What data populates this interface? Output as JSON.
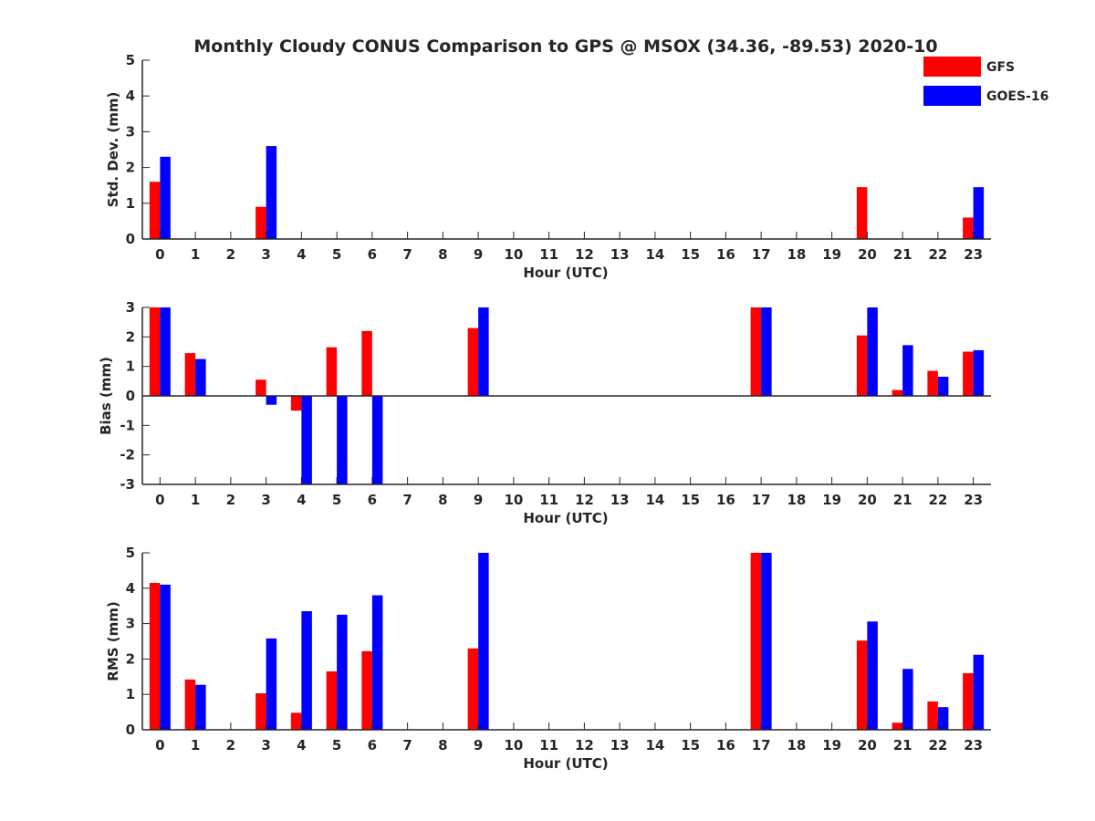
{
  "title": "Monthly Cloudy CONUS Comparison to GPS @ MSOX (34.36, -89.53) 2020-10",
  "legend": {
    "placement": "top-right",
    "entries": [
      {
        "name": "GFS",
        "color": "#ff0000"
      },
      {
        "name": "GOES-16",
        "color": "#0000ff"
      }
    ]
  },
  "chart_data": [
    {
      "type": "bar",
      "xlabel": "Hour (UTC)",
      "ylabel": "Std. Dev. (mm)",
      "ylim": [
        0,
        5
      ],
      "yticks": [
        "0",
        "1",
        "2",
        "3",
        "4",
        "5"
      ],
      "categories": [
        "0",
        "1",
        "2",
        "3",
        "4",
        "5",
        "6",
        "7",
        "8",
        "9",
        "10",
        "11",
        "12",
        "13",
        "14",
        "15",
        "16",
        "17",
        "18",
        "19",
        "20",
        "21",
        "22",
        "23"
      ],
      "series": [
        {
          "name": "GFS",
          "color": "#ff0000",
          "values": [
            1.6,
            0,
            0,
            0.9,
            0,
            0,
            0,
            0,
            0,
            0,
            0,
            0,
            0,
            0,
            0,
            0,
            0,
            0,
            0,
            0,
            1.45,
            0,
            0,
            0.6
          ]
        },
        {
          "name": "GOES-16",
          "color": "#0000ff",
          "values": [
            2.3,
            0,
            0,
            2.6,
            0,
            0,
            0,
            0,
            0,
            0,
            0,
            0,
            0,
            0,
            0,
            0,
            0,
            0,
            0,
            0,
            0,
            0,
            0,
            1.45
          ]
        }
      ]
    },
    {
      "type": "bar",
      "xlabel": "Hour (UTC)",
      "ylabel": "Bias (mm)",
      "ylim": [
        -3,
        3
      ],
      "yticks": [
        "-3",
        "-2",
        "-1",
        "0",
        "1",
        "2",
        "3"
      ],
      "categories": [
        "0",
        "1",
        "2",
        "3",
        "4",
        "5",
        "6",
        "7",
        "8",
        "9",
        "10",
        "11",
        "12",
        "13",
        "14",
        "15",
        "16",
        "17",
        "18",
        "19",
        "20",
        "21",
        "22",
        "23"
      ],
      "series": [
        {
          "name": "GFS",
          "color": "#ff0000",
          "values": [
            3,
            1.45,
            0,
            0.55,
            -0.5,
            1.65,
            2.2,
            0,
            0,
            2.3,
            0,
            0,
            0,
            0,
            0,
            0,
            0,
            3,
            0,
            0,
            2.05,
            0.2,
            0.85,
            1.5
          ]
        },
        {
          "name": "GOES-16",
          "color": "#0000ff",
          "values": [
            3,
            1.25,
            0,
            -0.3,
            -3,
            -3,
            -3,
            0,
            0,
            3,
            0,
            0,
            0,
            0,
            0,
            0,
            0,
            3,
            0,
            0,
            3,
            1.72,
            0.65,
            1.55
          ]
        }
      ]
    },
    {
      "type": "bar",
      "xlabel": "Hour (UTC)",
      "ylabel": "RMS (mm)",
      "ylim": [
        0,
        5
      ],
      "yticks": [
        "0",
        "1",
        "2",
        "3",
        "4",
        "5"
      ],
      "categories": [
        "0",
        "1",
        "2",
        "3",
        "4",
        "5",
        "6",
        "7",
        "8",
        "9",
        "10",
        "11",
        "12",
        "13",
        "14",
        "15",
        "16",
        "17",
        "18",
        "19",
        "20",
        "21",
        "22",
        "23"
      ],
      "series": [
        {
          "name": "GFS",
          "color": "#ff0000",
          "values": [
            4.15,
            1.42,
            0,
            1.03,
            0.48,
            1.65,
            2.22,
            0,
            0,
            2.3,
            0,
            0,
            0,
            0,
            0,
            0,
            0,
            5,
            0,
            0,
            2.52,
            0.2,
            0.8,
            1.6
          ]
        },
        {
          "name": "GOES-16",
          "color": "#0000ff",
          "values": [
            4.1,
            1.27,
            0,
            2.58,
            3.35,
            3.25,
            3.8,
            0,
            0,
            5,
            0,
            0,
            0,
            0,
            0,
            0,
            0,
            5,
            0,
            0,
            3.06,
            1.72,
            0.64,
            2.12
          ]
        }
      ]
    }
  ]
}
